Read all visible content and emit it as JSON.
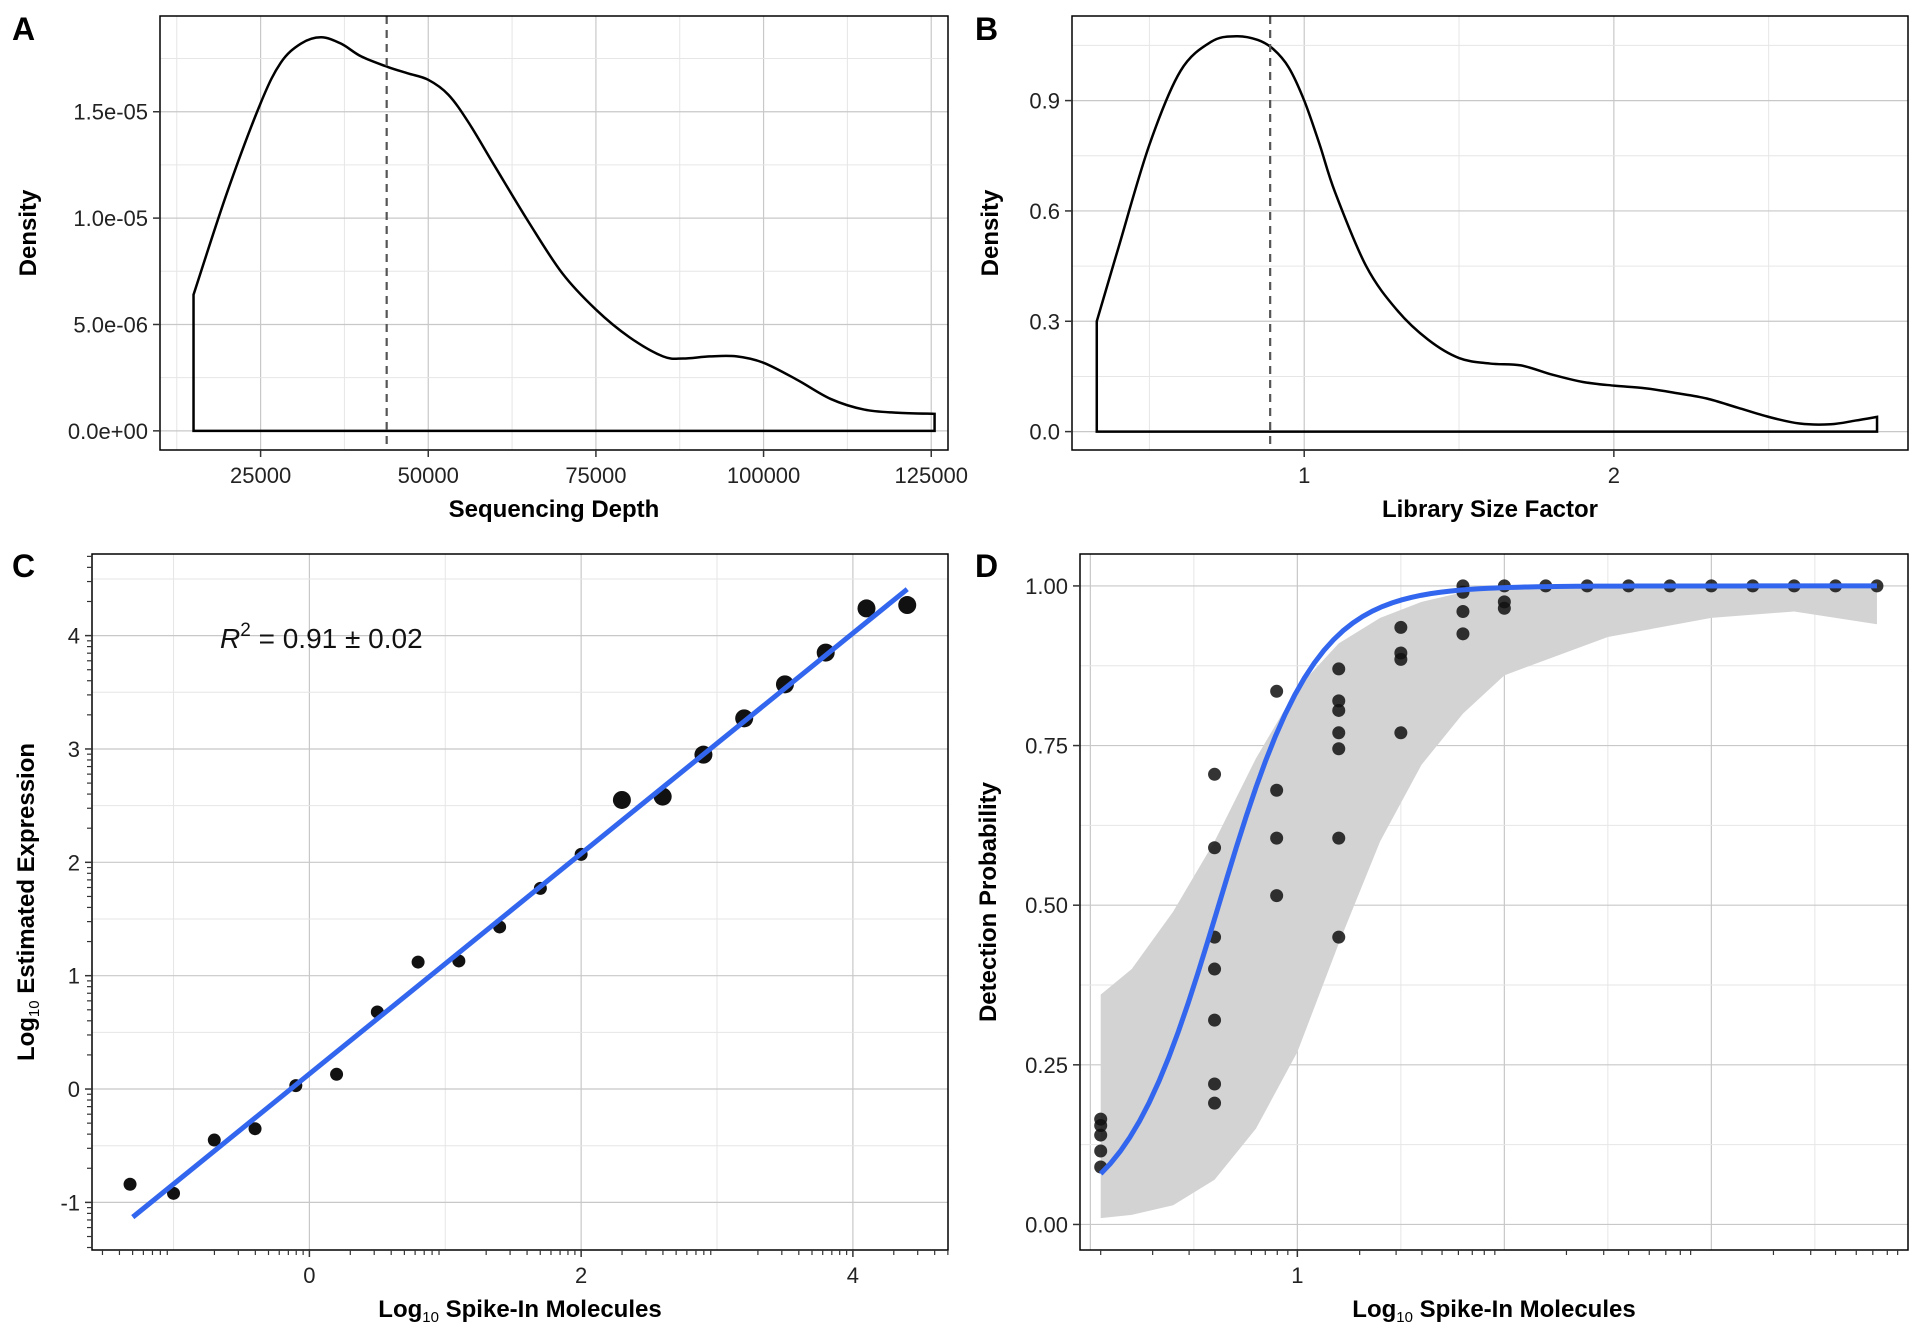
{
  "colors": {
    "fit_line": "#3366ee",
    "ribbon": "#d3d3d3",
    "points": "#111111",
    "grid_major": "#c8c8c8",
    "grid_minor": "#e6e6e6"
  },
  "chart_data": [
    {
      "panel": "A",
      "type": "line",
      "xlabel": "Sequencing Depth",
      "ylabel": "Density",
      "xlim": [
        10000,
        127500
      ],
      "ylim": [
        -9e-07,
        1.95e-05
      ],
      "xticks": [
        25000,
        50000,
        75000,
        100000,
        125000
      ],
      "xtick_labels": [
        "25000",
        "50000",
        "75000",
        "100000",
        "125000"
      ],
      "yticks": [
        0,
        5e-06,
        1e-05,
        1.5e-05
      ],
      "ytick_labels": [
        "0.0e+00",
        "5.0e-06",
        "1.0e-05",
        "1.5e-05"
      ],
      "grid": true,
      "vline": 43800,
      "series": [
        {
          "x": [
            15000,
            20000,
            25000,
            28000,
            31000,
            34000,
            37000,
            40000,
            44000,
            47000,
            50000,
            53000,
            56000,
            60000,
            65000,
            70000,
            75000,
            80000,
            85000,
            88000,
            92000,
            96000,
            100000,
            105000,
            110000,
            115000,
            120000,
            125500
          ],
          "y": [
            6.4e-06,
            1.12e-05,
            1.54e-05,
            1.73e-05,
            1.82e-05,
            1.85e-05,
            1.82e-05,
            1.76e-05,
            1.71e-05,
            1.68e-05,
            1.65e-05,
            1.58e-05,
            1.45e-05,
            1.24e-05,
            9.8e-06,
            7.4e-06,
            5.7e-06,
            4.4e-06,
            3.5e-06,
            3.4e-06,
            3.5e-06,
            3.5e-06,
            3.2e-06,
            2.4e-06,
            1.5e-06,
            1e-06,
            8.5e-07,
            8e-07
          ]
        }
      ]
    },
    {
      "panel": "B",
      "type": "line",
      "xlabel": "Library Size Factor",
      "ylabel": "Density",
      "xlim": [
        0.25,
        2.95
      ],
      "ylim": [
        -0.05,
        1.13
      ],
      "xticks": [
        1,
        2
      ],
      "xtick_labels": [
        "1",
        "2"
      ],
      "yticks": [
        0,
        0.3,
        0.6,
        0.9
      ],
      "ytick_labels": [
        "0.0",
        "0.3",
        "0.6",
        "0.9"
      ],
      "grid": true,
      "vline": 0.89,
      "series": [
        {
          "x": [
            0.33,
            0.4,
            0.5,
            0.6,
            0.7,
            0.78,
            0.85,
            0.9,
            0.95,
            1.0,
            1.05,
            1.1,
            1.2,
            1.3,
            1.4,
            1.5,
            1.6,
            1.7,
            1.8,
            1.9,
            2.0,
            2.1,
            2.2,
            2.3,
            2.4,
            2.5,
            2.6,
            2.7,
            2.78,
            2.85
          ],
          "y": [
            0.3,
            0.5,
            0.78,
            0.98,
            1.06,
            1.075,
            1.065,
            1.04,
            0.99,
            0.9,
            0.78,
            0.65,
            0.45,
            0.33,
            0.25,
            0.2,
            0.185,
            0.18,
            0.155,
            0.135,
            0.125,
            0.118,
            0.105,
            0.09,
            0.065,
            0.04,
            0.022,
            0.02,
            0.03,
            0.04
          ]
        }
      ]
    },
    {
      "panel": "C",
      "type": "scatter",
      "xlabel": "Log10 Spike-In Molecules",
      "ylabel": "Log10 Estimated Expression",
      "xlim": [
        -1.6,
        4.7
      ],
      "ylim": [
        -1.42,
        4.72
      ],
      "xticks": [
        0,
        2,
        4
      ],
      "xtick_labels": [
        "0",
        "2",
        "4"
      ],
      "yticks": [
        -1,
        0,
        1,
        2,
        3,
        4
      ],
      "ytick_labels": [
        "-1",
        "0",
        "1",
        "2",
        "3",
        "4"
      ],
      "grid": true,
      "annotation": {
        "r_label": "R",
        "r_exp": "2",
        "text": " = 0.91 ± 0.02"
      },
      "fit_line": {
        "x": [
          -1.3,
          4.4
        ],
        "y": [
          -1.13,
          4.41
        ]
      },
      "points": [
        {
          "x": -1.32,
          "y": -0.84,
          "size": 1
        },
        {
          "x": -1.0,
          "y": -0.92,
          "size": 1
        },
        {
          "x": -0.7,
          "y": -0.45,
          "size": 1
        },
        {
          "x": -0.4,
          "y": -0.35,
          "size": 1
        },
        {
          "x": -0.1,
          "y": 0.03,
          "size": 1
        },
        {
          "x": 0.2,
          "y": 0.13,
          "size": 1
        },
        {
          "x": 0.5,
          "y": 0.68,
          "size": 1
        },
        {
          "x": 0.8,
          "y": 1.12,
          "size": 1
        },
        {
          "x": 1.1,
          "y": 1.13,
          "size": 1
        },
        {
          "x": 1.4,
          "y": 1.43,
          "size": 1
        },
        {
          "x": 1.7,
          "y": 1.77,
          "size": 1
        },
        {
          "x": 2.0,
          "y": 2.07,
          "size": 1
        },
        {
          "x": 2.3,
          "y": 2.55,
          "size": 3
        },
        {
          "x": 2.6,
          "y": 2.58,
          "size": 3
        },
        {
          "x": 2.9,
          "y": 2.95,
          "size": 3
        },
        {
          "x": 3.2,
          "y": 3.27,
          "size": 3
        },
        {
          "x": 3.5,
          "y": 3.57,
          "size": 3
        },
        {
          "x": 3.8,
          "y": 3.85,
          "size": 3
        },
        {
          "x": 4.1,
          "y": 4.24,
          "size": 3
        },
        {
          "x": 4.4,
          "y": 4.27,
          "size": 3
        }
      ]
    },
    {
      "panel": "D",
      "type": "scatter",
      "xlabel": "Log10 Spike-In Molecules",
      "ylabel": "Detection Probability",
      "xlim": [
        -0.05,
        3.95
      ],
      "ylim": [
        -0.04,
        1.05
      ],
      "xticks": [
        1
      ],
      "xtick_labels": [
        "1"
      ],
      "yticks": [
        0,
        0.25,
        0.5,
        0.75,
        1
      ],
      "ytick_labels": [
        "0.00",
        "0.25",
        "0.50",
        "0.75",
        "1.00"
      ],
      "grid": true,
      "fit_curve": {
        "x0": 0.62,
        "k": 4.3
      },
      "ribbon": {
        "x": [
          0.05,
          0.2,
          0.4,
          0.6,
          0.8,
          1.0,
          1.2,
          1.4,
          1.6,
          1.8,
          2.0,
          2.5,
          3.0,
          3.4,
          3.8
        ],
        "upper": [
          0.36,
          0.4,
          0.49,
          0.6,
          0.73,
          0.84,
          0.91,
          0.95,
          0.975,
          0.99,
          0.995,
          1.0,
          1.0,
          1.0,
          1.0
        ],
        "lower": [
          0.01,
          0.015,
          0.03,
          0.07,
          0.15,
          0.27,
          0.44,
          0.6,
          0.72,
          0.8,
          0.86,
          0.92,
          0.95,
          0.96,
          0.94
        ]
      },
      "points": [
        {
          "x": 0.05,
          "y": 0.09
        },
        {
          "x": 0.05,
          "y": 0.115
        },
        {
          "x": 0.05,
          "y": 0.14
        },
        {
          "x": 0.05,
          "y": 0.155
        },
        {
          "x": 0.05,
          "y": 0.165
        },
        {
          "x": 0.6,
          "y": 0.705
        },
        {
          "x": 0.6,
          "y": 0.59
        },
        {
          "x": 0.6,
          "y": 0.45
        },
        {
          "x": 0.6,
          "y": 0.4
        },
        {
          "x": 0.6,
          "y": 0.32
        },
        {
          "x": 0.6,
          "y": 0.22
        },
        {
          "x": 0.6,
          "y": 0.19
        },
        {
          "x": 0.9,
          "y": 0.835
        },
        {
          "x": 0.9,
          "y": 0.68
        },
        {
          "x": 0.9,
          "y": 0.605
        },
        {
          "x": 0.9,
          "y": 0.515
        },
        {
          "x": 1.2,
          "y": 0.87
        },
        {
          "x": 1.2,
          "y": 0.82
        },
        {
          "x": 1.2,
          "y": 0.805
        },
        {
          "x": 1.2,
          "y": 0.77
        },
        {
          "x": 1.2,
          "y": 0.745
        },
        {
          "x": 1.2,
          "y": 0.605
        },
        {
          "x": 1.2,
          "y": 0.45
        },
        {
          "x": 1.5,
          "y": 0.935
        },
        {
          "x": 1.5,
          "y": 0.895
        },
        {
          "x": 1.5,
          "y": 0.885
        },
        {
          "x": 1.5,
          "y": 0.77
        },
        {
          "x": 1.8,
          "y": 1.0
        },
        {
          "x": 1.8,
          "y": 0.99
        },
        {
          "x": 1.8,
          "y": 0.96
        },
        {
          "x": 1.8,
          "y": 0.925
        },
        {
          "x": 2.0,
          "y": 1.0
        },
        {
          "x": 2.0,
          "y": 0.975
        },
        {
          "x": 2.0,
          "y": 0.965
        },
        {
          "x": 2.2,
          "y": 1.0
        },
        {
          "x": 2.4,
          "y": 1.0
        },
        {
          "x": 2.6,
          "y": 1.0
        },
        {
          "x": 2.8,
          "y": 1.0
        },
        {
          "x": 3.0,
          "y": 1.0
        },
        {
          "x": 3.2,
          "y": 1.0
        },
        {
          "x": 3.4,
          "y": 1.0
        },
        {
          "x": 3.6,
          "y": 1.0
        },
        {
          "x": 3.8,
          "y": 1.0
        }
      ]
    }
  ]
}
